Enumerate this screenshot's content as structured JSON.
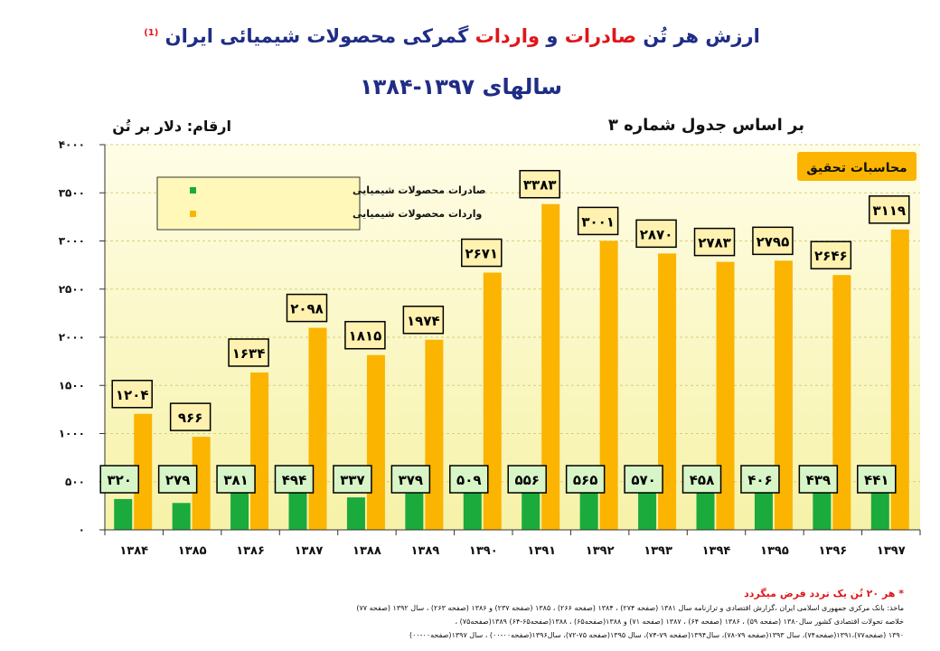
{
  "title": {
    "part1": "ارزش هر تُن",
    "part2": "صادرات",
    "part3": "و",
    "part4": "واردات",
    "part5": "گمرکی محصولات شیمیائی ایران",
    "footnote_mark": "(1)",
    "line2": "سالهای ۱۳۹۷-۱۳۸۴"
  },
  "subtitle_right": "بر اساس جدول شماره ۳",
  "unit_label": "ارقام: دلار بر تُن",
  "badge": "محاسبات تحقیق",
  "notes": {
    "star_note": "* هر ۲۰ تُن یک تردد فرض میگردد",
    "source_line1": "ماخذ: بانک مرکزی جمهوری اسلامی ایران ،گزارش اقتصادی و ترازنامه سال ۱۳۸۱ (صفحه ۲۷۴) ، ۱۳۸۴ (صفحه ۲۶۶) ، ۱۳۸۵ (صفحه ۲۳۷) و ۱۳۸۶ (صفحه ۲۶۳) ، سال ۱۳۹۲ (صفحه ۷۷)",
    "source_line2": "خلاصه تحولات اقتصادی کشور سال۱۳۸۰ (صفحه ۵۹) ، ۱۳۸۶ (صفحه ۶۴) ، ۱۳۸۷ (صفحه ۷۱) و ۱۳۸۸(صفحه۶۵) ، ۱۳۸۸(صفحه۶۵-۶۴) ۱۳۸۹(صفحه۷۵) ،",
    "source_line3": "۱۳۹۰ (صفحه۷۷)،۱۳۹۱(صفحه۷۴)، سال ۱۳۹۳(صفحه ۷۹-۷۸)، سال۱۳۹۴(صفحه ۷۹-۷۴)، سال ۱۳۹۵(صفحه ۷۵-۷۲)، سال۱۳۹۶(صفحه۰۰-۰۰) ، سال ۱۳۹۷(صفحه۰۰-۰۰)"
  },
  "colors": {
    "export": "#1aab3c",
    "import": "#fbb400",
    "plot_bg_top": "#fffde6",
    "plot_bg_bottom": "#f6f2a8",
    "export_label_bg": "#d8f5c8",
    "import_label_bg": "#fff2b0",
    "badge_bg": "#fbb400"
  },
  "chart_data": {
    "type": "bar",
    "categories": [
      "۱۳۸۴",
      "۱۳۸۵",
      "۱۳۸۶",
      "۱۳۸۷",
      "۱۳۸۸",
      "۱۳۸۹",
      "۱۳۹۰",
      "۱۳۹۱",
      "۱۳۹۲",
      "۱۳۹۳",
      "۱۳۹۴",
      "۱۳۹۵",
      "۱۳۹۶",
      "۱۳۹۷"
    ],
    "series": [
      {
        "name": "صادرات محصولات شیمیایی",
        "values": [
          320,
          279,
          381,
          494,
          337,
          379,
          509,
          556,
          565,
          570,
          458,
          406,
          439,
          441
        ],
        "labels": [
          "۳۲۰",
          "۲۷۹",
          "۳۸۱",
          "۴۹۴",
          "۳۳۷",
          "۳۷۹",
          "۵۰۹",
          "۵۵۶",
          "۵۶۵",
          "۵۷۰",
          "۴۵۸",
          "۴۰۶",
          "۴۳۹",
          "۴۴۱"
        ]
      },
      {
        "name": "واردات محصولات شیمیایی",
        "values": [
          1204,
          966,
          1634,
          2098,
          1815,
          1974,
          2671,
          3383,
          3001,
          2870,
          2783,
          2795,
          2646,
          3119
        ],
        "labels": [
          "۱۲۰۴",
          "۹۶۶",
          "۱۶۳۴",
          "۲۰۹۸",
          "۱۸۱۵",
          "۱۹۷۴",
          "۲۶۷۱",
          "۳۳۸۳",
          "۳۰۰۱",
          "۲۸۷۰",
          "۲۷۸۳",
          "۲۷۹۵",
          "۲۶۴۶",
          "۳۱۱۹"
        ]
      }
    ],
    "y_ticks": [
      {
        "value": 0,
        "label": "۰"
      },
      {
        "value": 500,
        "label": "۵۰۰"
      },
      {
        "value": 1000,
        "label": "۱۰۰۰"
      },
      {
        "value": 1500,
        "label": "۱۵۰۰"
      },
      {
        "value": 2000,
        "label": "۲۰۰۰"
      },
      {
        "value": 2500,
        "label": "۲۵۰۰"
      },
      {
        "value": 3000,
        "label": "۳۰۰۰"
      },
      {
        "value": 3500,
        "label": "۳۵۰۰"
      },
      {
        "value": 4000,
        "label": "۴۰۰۰"
      }
    ],
    "ylim": [
      0,
      4000
    ],
    "grid": true,
    "legend_position": "top-left"
  }
}
